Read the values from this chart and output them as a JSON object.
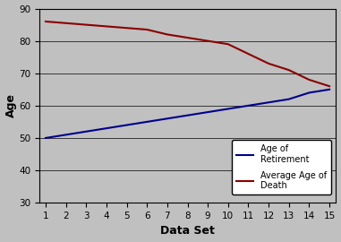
{
  "x": [
    1,
    2,
    3,
    4,
    5,
    6,
    7,
    8,
    9,
    10,
    11,
    12,
    13,
    14,
    15
  ],
  "retirement": [
    50,
    51,
    52,
    53,
    54,
    55,
    56,
    57,
    58,
    59,
    60,
    61,
    62,
    64,
    65
  ],
  "death": [
    86,
    85.5,
    85,
    84.5,
    84,
    83.5,
    82,
    81,
    80,
    79,
    76,
    73,
    71,
    68,
    66
  ],
  "retirement_color": "#00008B",
  "death_color": "#8B0000",
  "bg_color": "#C0C0C0",
  "plot_bg_color": "#C0C0C0",
  "ylabel": "Age",
  "xlabel": "Data Set",
  "ylim": [
    30,
    90
  ],
  "xlim": [
    1,
    15
  ],
  "yticks": [
    30,
    40,
    50,
    60,
    70,
    80,
    90
  ],
  "xticks": [
    1,
    2,
    3,
    4,
    5,
    6,
    7,
    8,
    9,
    10,
    11,
    12,
    13,
    14,
    15
  ],
  "legend_retirement": "Age of\nRetirement",
  "legend_death": "Average Age of\nDeath",
  "legend_bg": "#FFFFFF",
  "line_width": 1.5
}
